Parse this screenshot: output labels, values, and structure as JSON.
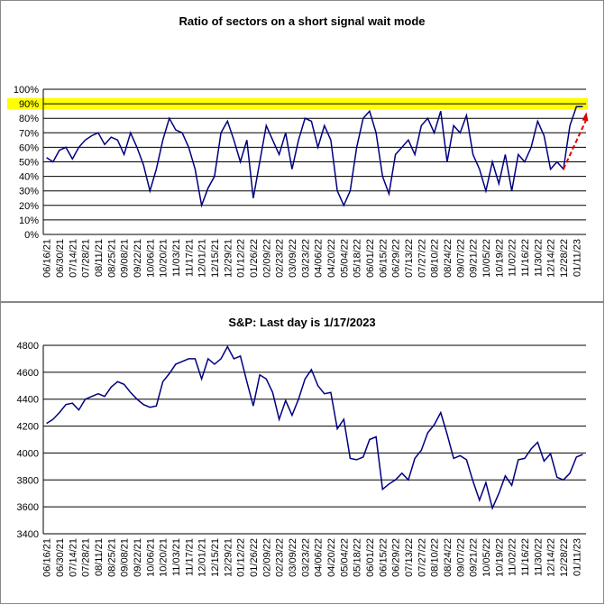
{
  "chart_data": [
    {
      "type": "line",
      "title": "Ratio of sectors on a short signal wait mode",
      "categories": [
        "06/16/21",
        null,
        "06/30/21",
        null,
        "07/14/21",
        null,
        "07/28/21",
        null,
        "08/11/21",
        null,
        "08/25/21",
        null,
        "09/08/21",
        null,
        "09/22/21",
        null,
        "10/06/21",
        null,
        "10/20/21",
        null,
        "11/03/21",
        null,
        "11/17/21",
        null,
        "12/01/21",
        null,
        "12/15/21",
        null,
        "12/29/21",
        null,
        "01/12/22",
        null,
        "01/26/22",
        null,
        "02/09/22",
        null,
        "02/23/22",
        null,
        "03/09/22",
        null,
        "03/23/22",
        null,
        "04/06/22",
        null,
        "04/20/22",
        null,
        "05/04/22",
        null,
        "05/18/22",
        null,
        "06/01/22",
        null,
        "06/15/22",
        null,
        "06/29/22",
        null,
        "07/13/22",
        null,
        "07/27/22",
        null,
        "08/10/22",
        null,
        "08/24/22",
        null,
        "09/07/22",
        null,
        "09/21/22",
        null,
        "10/05/22",
        null,
        "10/19/22",
        null,
        "11/02/22",
        null,
        "11/16/22",
        null,
        "11/30/22",
        null,
        "12/14/22",
        null,
        "12/28/22",
        null,
        "01/11/23",
        null
      ],
      "series": [
        {
          "name": "Ratio",
          "color": "#000080",
          "values": [
            53,
            50,
            58,
            60,
            52,
            60,
            65,
            68,
            70,
            62,
            67,
            65,
            55,
            70,
            60,
            48,
            30,
            45,
            65,
            80,
            72,
            70,
            60,
            45,
            20,
            32,
            40,
            70,
            78,
            65,
            50,
            65,
            25,
            50,
            75,
            65,
            55,
            70,
            45,
            65,
            80,
            78,
            60,
            75,
            65,
            30,
            20,
            30,
            60,
            80,
            85,
            70,
            40,
            28,
            55,
            60,
            65,
            55,
            75,
            80,
            70,
            85,
            50,
            75,
            70,
            82,
            55,
            45,
            30,
            50,
            35,
            55,
            30,
            55,
            50,
            60,
            78,
            68,
            45,
            50,
            45,
            75,
            88,
            88
          ]
        }
      ],
      "ylim": [
        0,
        100
      ],
      "yticks": [
        {
          "value": 0,
          "label": "0%"
        },
        {
          "value": 10,
          "label": "10%"
        },
        {
          "value": 20,
          "label": "20%"
        },
        {
          "value": 30,
          "label": "30%"
        },
        {
          "value": 40,
          "label": "40%"
        },
        {
          "value": 50,
          "label": "50%"
        },
        {
          "value": 60,
          "label": "60%"
        },
        {
          "value": 70,
          "label": "70%"
        },
        {
          "value": 80,
          "label": "80%"
        },
        {
          "value": 90,
          "label": "90%"
        },
        {
          "value": 100,
          "label": "100%"
        }
      ],
      "highlight_band": [
        86,
        94
      ],
      "highlight_color": "#ffff00",
      "grid": true
    },
    {
      "type": "line",
      "title": "S&P: Last day is 1/17/2023",
      "categories": [
        "06/16/21",
        null,
        "06/30/21",
        null,
        "07/14/21",
        null,
        "07/28/21",
        null,
        "08/11/21",
        null,
        "08/25/21",
        null,
        "09/08/21",
        null,
        "09/22/21",
        null,
        "10/06/21",
        null,
        "10/20/21",
        null,
        "11/03/21",
        null,
        "11/17/21",
        null,
        "12/01/21",
        null,
        "12/15/21",
        null,
        "12/29/21",
        null,
        "01/12/22",
        null,
        "01/26/22",
        null,
        "02/09/22",
        null,
        "02/23/22",
        null,
        "03/09/22",
        null,
        "03/23/22",
        null,
        "04/06/22",
        null,
        "04/20/22",
        null,
        "05/04/22",
        null,
        "05/18/22",
        null,
        "06/01/22",
        null,
        "06/15/22",
        null,
        "06/29/22",
        null,
        "07/13/22",
        null,
        "07/27/22",
        null,
        "08/10/22",
        null,
        "08/24/22",
        null,
        "09/07/22",
        null,
        "09/21/22",
        null,
        "10/05/22",
        null,
        "10/19/22",
        null,
        "11/02/22",
        null,
        "11/16/22",
        null,
        "11/30/22",
        null,
        "12/14/22",
        null,
        "12/28/22",
        null,
        "01/11/23",
        null
      ],
      "series": [
        {
          "name": "S&P",
          "color": "#000080",
          "values": [
            4220,
            4250,
            4300,
            4360,
            4370,
            4320,
            4400,
            4420,
            4440,
            4420,
            4490,
            4530,
            4510,
            4450,
            4400,
            4360,
            4340,
            4350,
            4530,
            4590,
            4660,
            4680,
            4700,
            4700,
            4550,
            4700,
            4660,
            4700,
            4790,
            4700,
            4720,
            4530,
            4350,
            4580,
            4550,
            4450,
            4250,
            4390,
            4280,
            4400,
            4550,
            4620,
            4500,
            4440,
            4450,
            4180,
            4250,
            3960,
            3950,
            3970,
            4100,
            4120,
            3730,
            3770,
            3800,
            3850,
            3800,
            3960,
            4020,
            4150,
            4210,
            4300,
            4140,
            3960,
            3980,
            3950,
            3790,
            3650,
            3780,
            3590,
            3700,
            3830,
            3760,
            3950,
            3960,
            4030,
            4080,
            3940,
            3995,
            3820,
            3800,
            3850,
            3970,
            3990
          ]
        }
      ],
      "ylim": [
        3400,
        4800
      ],
      "yticks": [
        3400,
        3600,
        3800,
        4000,
        4200,
        4400,
        4600,
        4800
      ],
      "grid": true
    }
  ]
}
